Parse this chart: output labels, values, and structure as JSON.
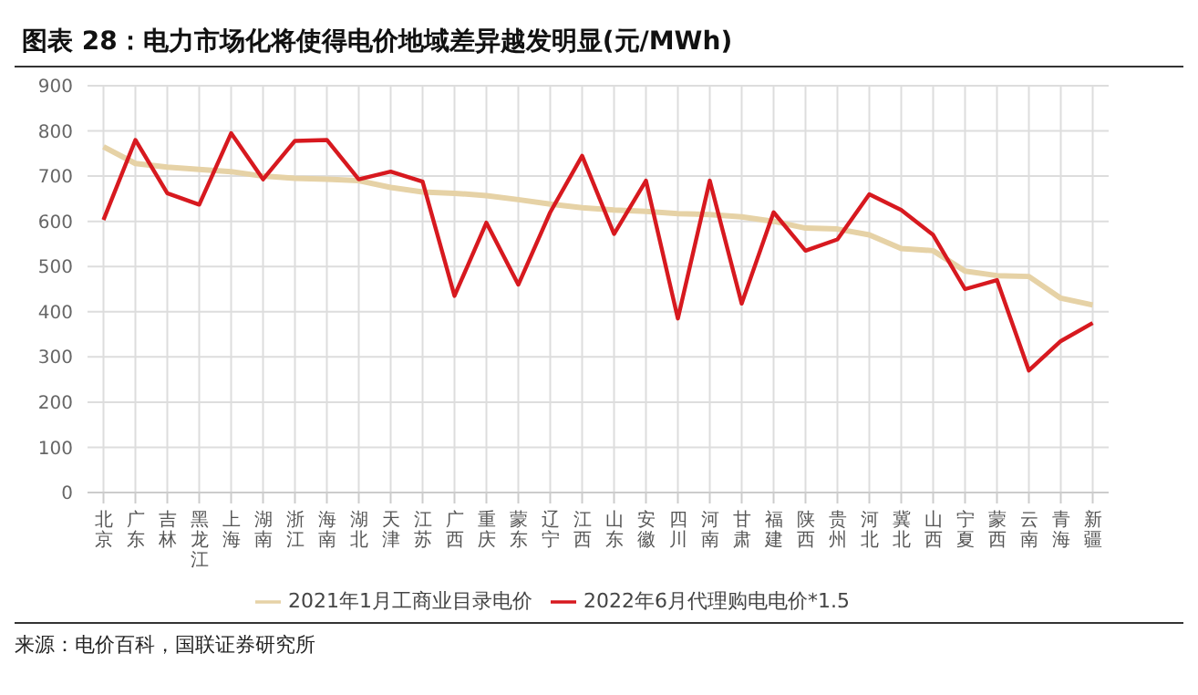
{
  "chart_data": {
    "type": "line",
    "title": "图表 28：电力市场化将使得电价地域差异越发明显(元/MWh)",
    "categories": [
      "北京",
      "广东",
      "吉林",
      "黑龙江",
      "上海",
      "湖南",
      "浙江",
      "海南",
      "湖北",
      "天津",
      "江苏",
      "广西",
      "重庆",
      "蒙东",
      "辽宁",
      "江西",
      "山东",
      "安徽",
      "四川",
      "河南",
      "甘肃",
      "福建",
      "陕西",
      "贵州",
      "河北",
      "冀北",
      "山西",
      "宁夏",
      "蒙西",
      "云南",
      "青海",
      "新疆"
    ],
    "series": [
      {
        "name": "2021年1月工商业目录电价",
        "color": "#e6d2a6",
        "values": [
          765,
          728,
          720,
          715,
          710,
          700,
          695,
          693,
          690,
          675,
          665,
          662,
          657,
          648,
          638,
          630,
          625,
          622,
          617,
          615,
          610,
          600,
          585,
          583,
          570,
          540,
          535,
          490,
          480,
          478,
          430,
          415
        ]
      },
      {
        "name": "2022年6月代理购电电价*1.5",
        "color": "#d7191f",
        "values": [
          603,
          780,
          662,
          637,
          795,
          693,
          778,
          780,
          693,
          710,
          688,
          435,
          597,
          460,
          620,
          745,
          572,
          690,
          385,
          690,
          418,
          620,
          535,
          560,
          660,
          625,
          570,
          450,
          470,
          270,
          335,
          375
        ]
      }
    ],
    "ylim": [
      0,
      900
    ],
    "yticks": [
      0,
      100,
      200,
      300,
      400,
      500,
      600,
      700,
      800,
      900
    ],
    "grid": true,
    "legend": "bottom",
    "marker": "none",
    "annotations": [
      "来源：电价百科，国联证券研究所"
    ]
  }
}
